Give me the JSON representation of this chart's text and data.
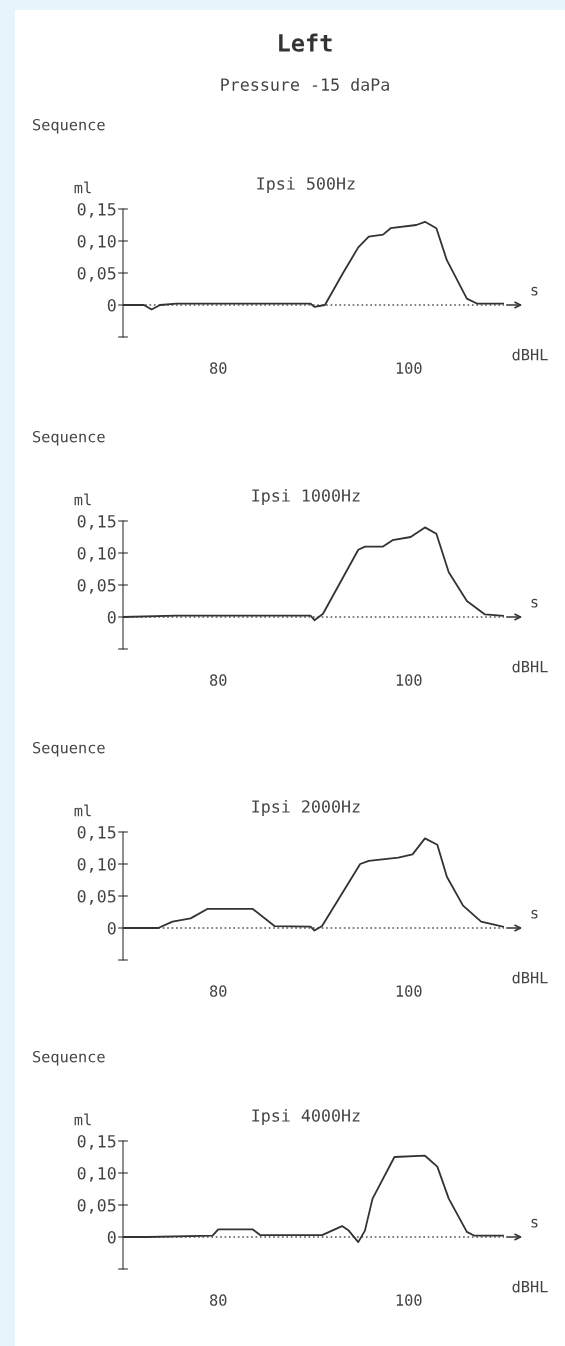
{
  "chart_data": [
    {
      "type": "line",
      "ref_lines": [
        {
          "axis": "y",
          "value": 0,
          "line_style": "dotted",
          "color": "#555555"
        }
      ],
      "title": "Ipsi 500Hz",
      "subtitle": "Sequence",
      "ylabel": "ml",
      "xlabel": "dBHL",
      "annotations": [
        "Left",
        "Pressure -15 daPa",
        "s"
      ],
      "xlim": [
        70,
        110
      ],
      "xticks": [
        80,
        100
      ],
      "ylim": [
        -0.05,
        0.15
      ],
      "yticks": [
        {
          "value": -0.05,
          "label": null
        },
        {
          "value": 0,
          "label": "0"
        },
        {
          "value": 0.05,
          "label": "0,05"
        },
        {
          "value": 0.1,
          "label": "0,10"
        },
        {
          "value": 0.15,
          "label": "0,15"
        }
      ],
      "grid": false,
      "marker": "none",
      "line_style": "solid",
      "x": [
        70,
        72.2,
        73.0,
        73.9,
        75.6,
        89.7,
        90.1,
        91.2,
        93.1,
        94.7,
        95.8,
        97.3,
        98.1,
        100.8,
        101.7,
        102.9,
        104.0,
        106.1,
        107.2,
        109.9
      ],
      "series": [
        {
          "color": "#333333",
          "values": [
            0,
            0,
            -0.007,
            0,
            0.002,
            0.002,
            -0.003,
            0,
            0.05,
            0.09,
            0.107,
            0.11,
            0.12,
            0.125,
            0.13,
            0.12,
            0.07,
            0.01,
            0.002,
            0.002
          ]
        }
      ]
    },
    {
      "type": "line",
      "ref_lines": [
        {
          "axis": "y",
          "value": 0,
          "line_style": "dotted",
          "color": "#555555"
        }
      ],
      "title": "Ipsi 1000Hz",
      "subtitle": "Sequence",
      "ylabel": "ml",
      "xlabel": "dBHL",
      "annotations": [
        "s"
      ],
      "xlim": [
        70,
        110
      ],
      "xticks": [
        80,
        100
      ],
      "ylim": [
        -0.05,
        0.15
      ],
      "yticks": [
        {
          "value": -0.05,
          "label": null
        },
        {
          "value": 0,
          "label": "0"
        },
        {
          "value": 0.05,
          "label": "0,05"
        },
        {
          "value": 0.1,
          "label": "0,10"
        },
        {
          "value": 0.15,
          "label": "0,15"
        }
      ],
      "grid": false,
      "marker": "none",
      "line_style": "solid",
      "x": [
        70,
        75.6,
        89.7,
        90.1,
        91.0,
        94.7,
        95.4,
        97.3,
        98.3,
        100.2,
        101.7,
        102.9,
        104.2,
        106.1,
        108.0,
        109.9
      ],
      "series": [
        {
          "color": "#333333",
          "values": [
            0,
            0.002,
            0.002,
            -0.005,
            0.005,
            0.105,
            0.11,
            0.11,
            0.12,
            0.125,
            0.14,
            0.13,
            0.07,
            0.025,
            0.004,
            0.002
          ]
        }
      ]
    },
    {
      "type": "line",
      "ref_lines": [
        {
          "axis": "y",
          "value": 0,
          "line_style": "dotted",
          "color": "#555555"
        }
      ],
      "title": "Ipsi 2000Hz",
      "subtitle": "Sequence",
      "ylabel": "ml",
      "xlabel": "dBHL",
      "annotations": [
        "s"
      ],
      "xlim": [
        70,
        110
      ],
      "xticks": [
        80,
        100
      ],
      "ylim": [
        -0.05,
        0.15
      ],
      "yticks": [
        {
          "value": -0.05,
          "label": null
        },
        {
          "value": 0,
          "label": "0"
        },
        {
          "value": 0.05,
          "label": "0,05"
        },
        {
          "value": 0.1,
          "label": "0,10"
        },
        {
          "value": 0.15,
          "label": "0,15"
        }
      ],
      "grid": false,
      "marker": "none",
      "line_style": "solid",
      "x": [
        70,
        73.7,
        75.2,
        77.1,
        78.9,
        83.6,
        85.9,
        89.7,
        90.1,
        90.9,
        94.9,
        95.8,
        98.9,
        100.4,
        101.7,
        103.0,
        104.0,
        105.7,
        107.6,
        109.9
      ],
      "series": [
        {
          "color": "#333333",
          "values": [
            0,
            0,
            0.01,
            0.015,
            0.03,
            0.03,
            0.003,
            0.002,
            -0.004,
            0.003,
            0.1,
            0.105,
            0.11,
            0.115,
            0.14,
            0.13,
            0.08,
            0.035,
            0.01,
            0.002
          ]
        }
      ]
    },
    {
      "type": "line",
      "ref_lines": [
        {
          "axis": "y",
          "value": 0,
          "line_style": "dotted",
          "color": "#555555"
        }
      ],
      "title": "Ipsi 4000Hz",
      "subtitle": "Sequence",
      "ylabel": "ml",
      "xlabel": "dBHL",
      "annotations": [
        "s"
      ],
      "xlim": [
        70,
        110
      ],
      "xticks": [
        80,
        100
      ],
      "ylim": [
        -0.05,
        0.15
      ],
      "yticks": [
        {
          "value": -0.05,
          "label": null
        },
        {
          "value": 0,
          "label": "0"
        },
        {
          "value": 0.05,
          "label": "0,05"
        },
        {
          "value": 0.1,
          "label": "0,10"
        },
        {
          "value": 0.15,
          "label": "0,15"
        }
      ],
      "grid": false,
      "marker": "none",
      "line_style": "solid",
      "x": [
        70,
        72.6,
        79.4,
        80.0,
        83.6,
        84.4,
        90.9,
        93.0,
        93.7,
        94.7,
        95.4,
        96.2,
        98.5,
        101.7,
        103.0,
        104.2,
        106.1,
        106.9,
        109.9
      ],
      "series": [
        {
          "color": "#333333",
          "values": [
            0,
            0,
            0.002,
            0.012,
            0.012,
            0.003,
            0.003,
            0.017,
            0.01,
            -0.008,
            0.01,
            0.06,
            0.125,
            0.127,
            0.11,
            0.06,
            0.008,
            0.002,
            0.002
          ]
        }
      ]
    }
  ]
}
